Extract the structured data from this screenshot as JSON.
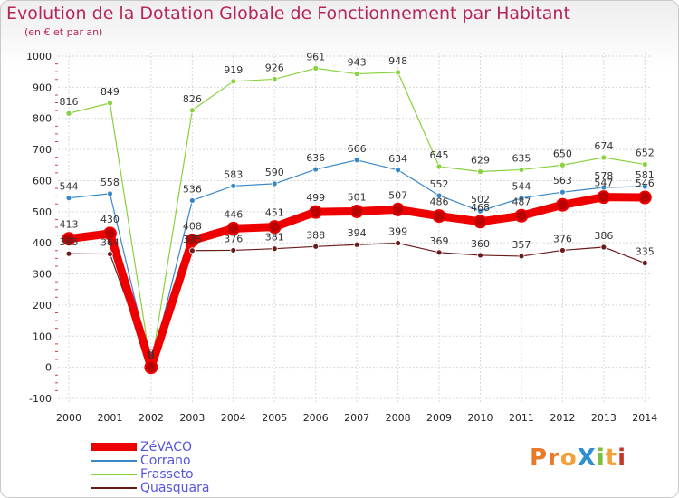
{
  "chart_data": {
    "type": "line",
    "title": "Evolution de la Dotation Globale de Fonctionnement par Habitant",
    "subtitle": "(en € et par an)",
    "categories": [
      "2000",
      "2001",
      "2002",
      "2003",
      "2004",
      "2005",
      "2006",
      "2007",
      "2008",
      "2009",
      "2010",
      "2011",
      "2012",
      "2013",
      "2014"
    ],
    "ylim": [
      -100,
      1000
    ],
    "yticks": [
      -100,
      0,
      100,
      200,
      300,
      400,
      500,
      600,
      700,
      800,
      900,
      1000
    ],
    "series": [
      {
        "name": "ZéVACO",
        "color": "#ee0000",
        "values": [
          413,
          430,
          0,
          408,
          446,
          451,
          499,
          501,
          507,
          486,
          468,
          487,
          522,
          547,
          546
        ],
        "labels": [
          "413",
          "430",
          "0",
          "408",
          "446",
          "451",
          "499",
          "501",
          "507",
          "486",
          "468",
          "487",
          "",
          "547",
          "546"
        ]
      },
      {
        "name": "Corrano",
        "color": "#3a87c8",
        "values": [
          544,
          558,
          0,
          536,
          583,
          590,
          636,
          666,
          634,
          552,
          502,
          544,
          563,
          578,
          581
        ],
        "labels": [
          "544",
          "558",
          "0",
          "536",
          "583",
          "590",
          "636",
          "666",
          "634",
          "552",
          "502",
          "544",
          "563",
          "578",
          "581"
        ]
      },
      {
        "name": "Frasseto",
        "color": "#88d23c",
        "values": [
          816,
          849,
          0,
          826,
          919,
          926,
          961,
          943,
          948,
          645,
          629,
          635,
          650,
          674,
          652
        ],
        "labels": [
          "816",
          "849",
          "0",
          "826",
          "919",
          "926",
          "961",
          "943",
          "948",
          "645",
          "629",
          "635",
          "650",
          "674",
          "652"
        ]
      },
      {
        "name": "Quasquara",
        "color": "#6b1a1a",
        "values": [
          365,
          364,
          0,
          375,
          376,
          381,
          388,
          394,
          399,
          369,
          360,
          357,
          376,
          386,
          335
        ],
        "labels": [
          "365",
          "364",
          "0",
          "375",
          "376",
          "381",
          "388",
          "394",
          "399",
          "369",
          "360",
          "357",
          "376",
          "386",
          "335"
        ]
      }
    ]
  },
  "logo": {
    "text": "ProXiti",
    "colors": [
      "#e87a2a",
      "#e87a2a",
      "#f2a13a",
      "#2f8fd0",
      "#7bbf3a",
      "#f2a13a",
      "#c0392b"
    ]
  }
}
